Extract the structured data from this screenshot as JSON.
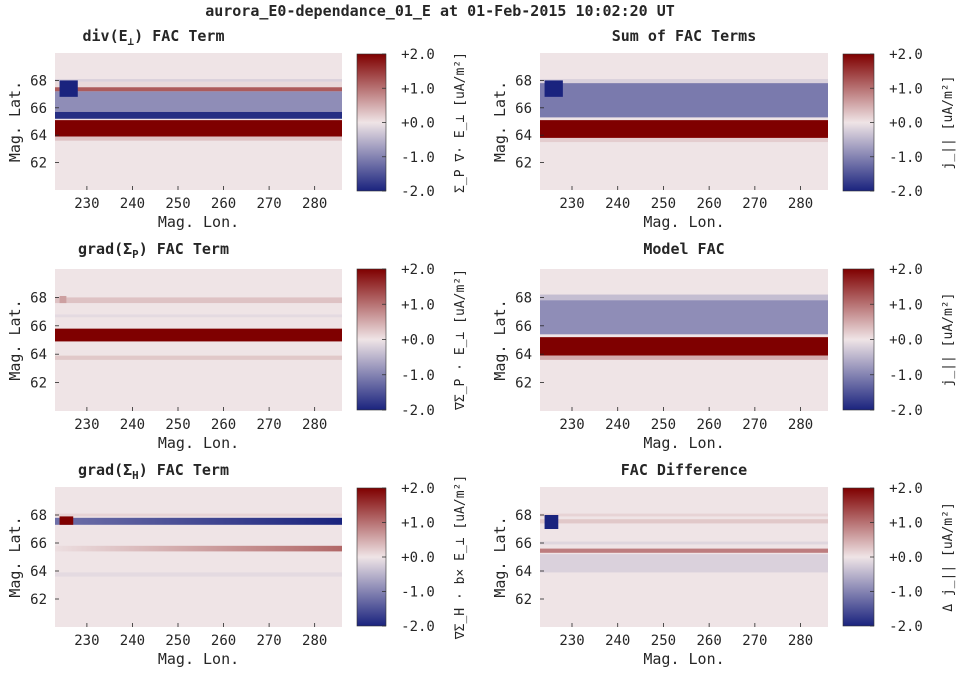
{
  "title": "aurora_E0-dependance_01_E at 01-Feb-2015 10:02:20 UT",
  "colormap": {
    "low": "#1a237e",
    "mid": "#efe4e6",
    "high": "#7f0000",
    "min": -2,
    "max": 2
  },
  "colorbar_ticks": [
    "+2.0",
    "+1.0",
    "+0.0",
    "-1.0",
    "-2.0"
  ],
  "chart_data": [
    {
      "type": "heatmap",
      "title": {
        "main": "div(E",
        "sub": "⊥",
        "tail": ") FAC Term"
      },
      "xlabel": "Mag. Lon.",
      "ylabel": "Mag. Lat.",
      "xticks": [
        230,
        240,
        250,
        260,
        270,
        280
      ],
      "yticks": [
        62,
        64,
        66,
        68
      ],
      "xlim": [
        223,
        286
      ],
      "ylim": [
        60,
        70
      ],
      "clim": [
        -2,
        2
      ],
      "colorbar_label": "Σ_P ∇· E_⊥ [uA/m²]",
      "bands": [
        {
          "lat": [
            67.9,
            68.1
          ],
          "value": -0.2
        },
        {
          "lat": [
            67.5,
            67.9
          ],
          "value": 0.1
        },
        {
          "lat": [
            67.2,
            67.5
          ],
          "value": 1.2
        },
        {
          "lat": [
            65.7,
            67.2
          ],
          "value": -0.9
        },
        {
          "lat": [
            65.2,
            65.7
          ],
          "value": -1.9
        },
        {
          "lat": [
            63.9,
            65.1
          ],
          "value": 2.4
        },
        {
          "lat": [
            63.6,
            63.9
          ],
          "value": 0.3
        }
      ],
      "spot": {
        "lon": [
          224,
          228
        ],
        "lat": [
          66.8,
          68.0
        ],
        "value": -2.2
      }
    },
    {
      "type": "heatmap",
      "title": {
        "main": "Sum of FAC Terms",
        "sub": "",
        "tail": ""
      },
      "xlabel": "Mag. Lon.",
      "ylabel": "Mag. Lat.",
      "xticks": [
        230,
        240,
        250,
        260,
        270,
        280
      ],
      "yticks": [
        62,
        64,
        66,
        68
      ],
      "xlim": [
        223,
        286
      ],
      "ylim": [
        60,
        70
      ],
      "clim": [
        -2,
        2
      ],
      "colorbar_label": "j_|| [uA/m²]",
      "bands": [
        {
          "lat": [
            67.8,
            68.1
          ],
          "value": -0.2
        },
        {
          "lat": [
            65.3,
            67.8
          ],
          "value": -1.1
        },
        {
          "lat": [
            63.8,
            65.1
          ],
          "value": 2.5
        },
        {
          "lat": [
            63.5,
            63.8
          ],
          "value": 0.2
        }
      ],
      "spot": {
        "lon": [
          224,
          228
        ],
        "lat": [
          66.8,
          68.0
        ],
        "value": -2.3
      }
    },
    {
      "type": "heatmap",
      "title": {
        "main": "grad(Σ",
        "sub": "P",
        "tail": ") FAC Term"
      },
      "xlabel": "Mag. Lon.",
      "ylabel": "Mag. Lat.",
      "xticks": [
        230,
        240,
        250,
        260,
        270,
        280
      ],
      "yticks": [
        62,
        64,
        66,
        68
      ],
      "xlim": [
        223,
        286
      ],
      "ylim": [
        60,
        70
      ],
      "clim": [
        -2,
        2
      ],
      "colorbar_label": "∇Σ_P · E_⊥ [uA/m²]",
      "bands": [
        {
          "lat": [
            67.6,
            68.0
          ],
          "value": 0.3
        },
        {
          "lat": [
            66.6,
            66.8
          ],
          "value": -0.1
        },
        {
          "lat": [
            64.9,
            65.8
          ],
          "value": 2.5
        },
        {
          "lat": [
            63.6,
            63.9
          ],
          "value": 0.25
        }
      ],
      "spot": {
        "lon": [
          224,
          225.5
        ],
        "lat": [
          67.6,
          68.1
        ],
        "value": 0.6
      }
    },
    {
      "type": "heatmap",
      "title": {
        "main": "Model FAC",
        "sub": "",
        "tail": ""
      },
      "xlabel": "Mag. Lon.",
      "ylabel": "Mag. Lat.",
      "xticks": [
        230,
        240,
        250,
        260,
        270,
        280
      ],
      "yticks": [
        62,
        64,
        66,
        68
      ],
      "xlim": [
        223,
        286
      ],
      "ylim": [
        60,
        70
      ],
      "clim": [
        -2,
        2
      ],
      "colorbar_label": "j_|| [uA/m²]",
      "bands": [
        {
          "lat": [
            67.8,
            68.2
          ],
          "value": -0.4
        },
        {
          "lat": [
            65.4,
            67.8
          ],
          "value": -0.9
        },
        {
          "lat": [
            63.9,
            65.2
          ],
          "value": 2.6
        },
        {
          "lat": [
            63.6,
            63.9
          ],
          "value": 0.5
        }
      ],
      "spot": null
    },
    {
      "type": "heatmap",
      "title": {
        "main": "grad(Σ",
        "sub": "H",
        "tail": ") FAC Term"
      },
      "xlabel": "Mag. Lon.",
      "ylabel": "Mag. Lat.",
      "xticks": [
        230,
        240,
        250,
        260,
        270,
        280
      ],
      "yticks": [
        62,
        64,
        66,
        68
      ],
      "xlim": [
        223,
        286
      ],
      "ylim": [
        60,
        70
      ],
      "clim": [
        -2,
        2
      ],
      "colorbar_label": "∇Σ_H · b× E_⊥ [uA/m²]",
      "bands": [
        {
          "lat": [
            67.9,
            68.1
          ],
          "value": 0.15
        },
        {
          "lat": [
            67.3,
            67.8
          ],
          "value": -1.2,
          "value_end": -2.1
        },
        {
          "lat": [
            65.4,
            65.8
          ],
          "value": 0.05,
          "value_end": 1.1
        },
        {
          "lat": [
            63.6,
            63.9
          ],
          "value": -0.1
        }
      ],
      "spot": {
        "lon": [
          224,
          227
        ],
        "lat": [
          67.3,
          67.9
        ],
        "value": 2.4
      }
    },
    {
      "type": "heatmap",
      "title": {
        "main": "FAC Difference",
        "sub": "",
        "tail": ""
      },
      "xlabel": "Mag. Lon.",
      "ylabel": "Mag. Lat.",
      "xticks": [
        230,
        240,
        250,
        260,
        270,
        280
      ],
      "yticks": [
        62,
        64,
        66,
        68
      ],
      "xlim": [
        223,
        286
      ],
      "ylim": [
        60,
        70
      ],
      "clim": [
        -2,
        2
      ],
      "colorbar_label": "Δ j_|| [uA/m²]",
      "bands": [
        {
          "lat": [
            67.9,
            68.1
          ],
          "value": 0.15
        },
        {
          "lat": [
            67.4,
            67.7
          ],
          "value": 0.25
        },
        {
          "lat": [
            65.9,
            66.1
          ],
          "value": -0.15
        },
        {
          "lat": [
            65.3,
            65.6
          ],
          "value": 0.9
        },
        {
          "lat": [
            63.9,
            65.2
          ],
          "value": -0.2
        }
      ],
      "spot": {
        "lon": [
          224,
          227
        ],
        "lat": [
          67.0,
          68.0
        ],
        "value": -2.4
      }
    }
  ]
}
